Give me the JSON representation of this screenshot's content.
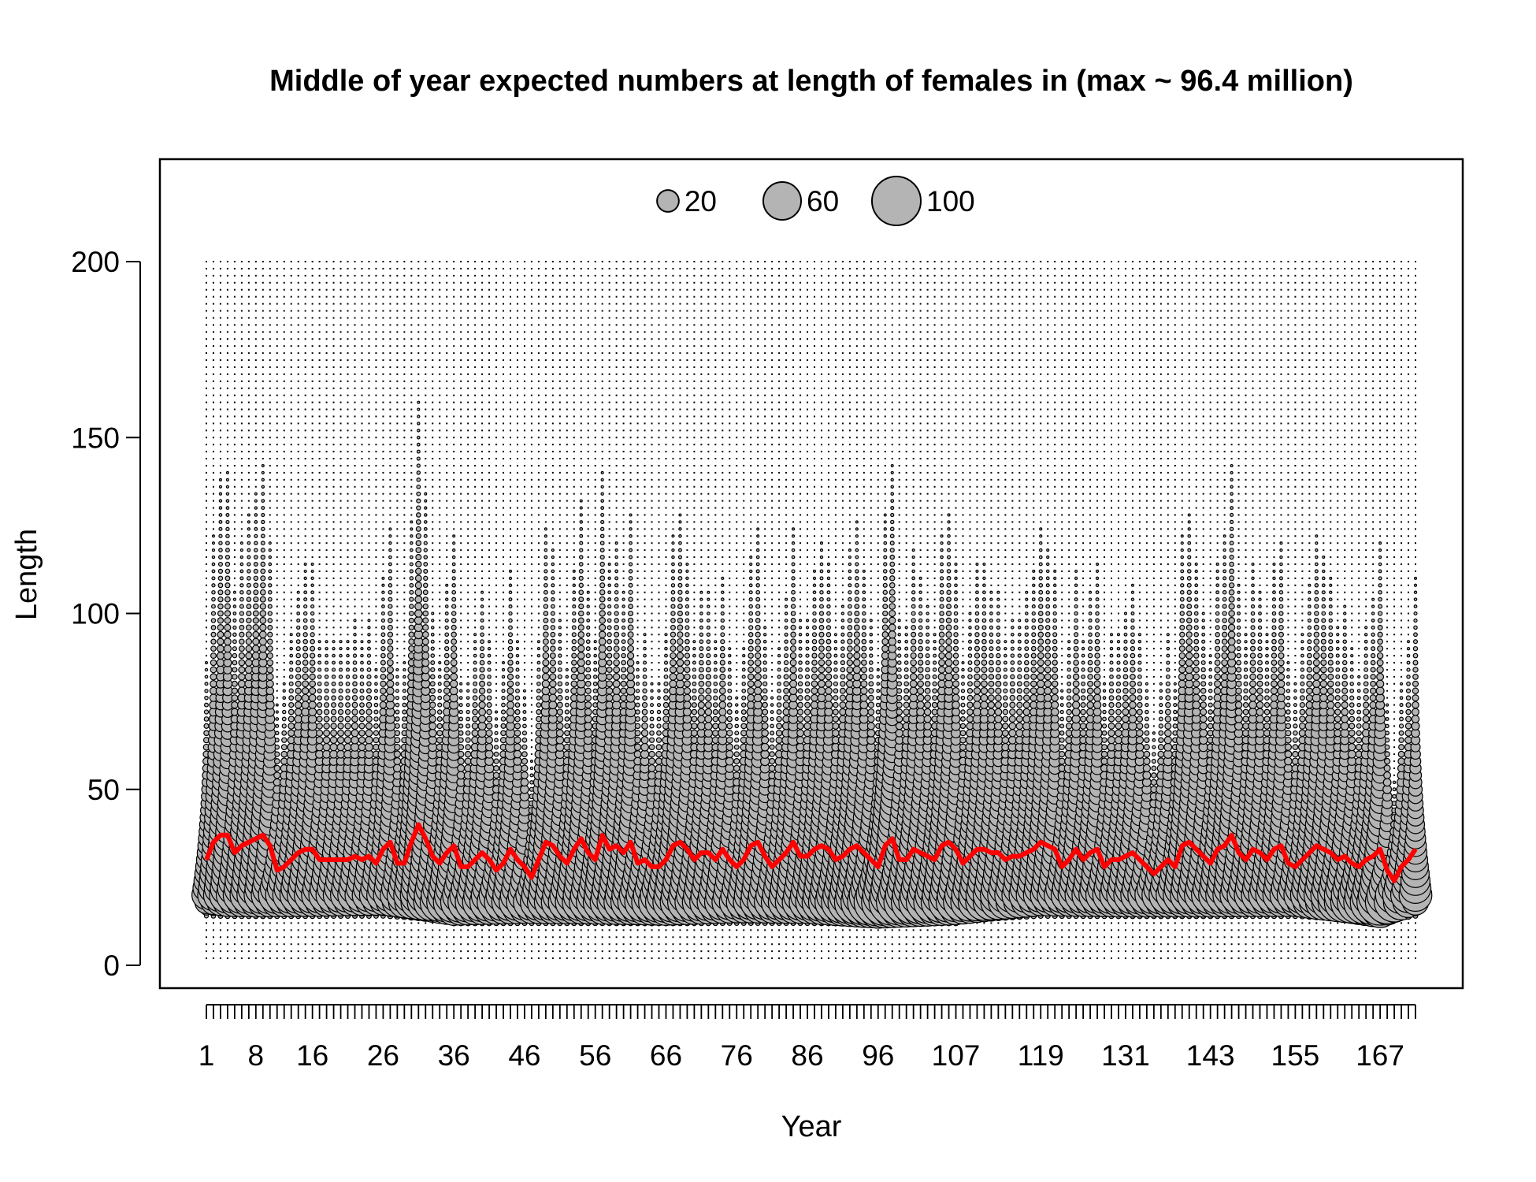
{
  "chart_data": {
    "type": "bubble",
    "title": "Middle of year expected numbers at length of females in (max ~ 96.4 million)",
    "xlabel": "Year",
    "ylabel": "Length",
    "x_range": [
      1,
      172
    ],
    "ylim": [
      0,
      210
    ],
    "y_ticks": [
      0,
      50,
      100,
      150,
      200
    ],
    "x_tick_labels": [
      1,
      8,
      16,
      26,
      36,
      46,
      56,
      66,
      76,
      86,
      96,
      107,
      119,
      131,
      143,
      155,
      167
    ],
    "length_bins": {
      "min": 2,
      "max": 200,
      "step": 2
    },
    "legend": {
      "placement": "top",
      "sizes": [
        20,
        60,
        100
      ],
      "labels": [
        "20",
        "60",
        "100"
      ]
    },
    "max_value_millions": 96.4,
    "bubble_fill": "#b4b4b4",
    "line_color": "#ff0000",
    "mean_length_series": {
      "name": "",
      "x": [
        1,
        2,
        3,
        4,
        5,
        6,
        7,
        8,
        9,
        10,
        11,
        12,
        13,
        14,
        15,
        16,
        17,
        18,
        19,
        20,
        21,
        22,
        23,
        24,
        25,
        26,
        27,
        28,
        29,
        30,
        31,
        32,
        33,
        34,
        35,
        36,
        37,
        38,
        39,
        40,
        41,
        42,
        43,
        44,
        45,
        46,
        47,
        48,
        49,
        50,
        51,
        52,
        53,
        54,
        55,
        56,
        57,
        58,
        59,
        60,
        61,
        62,
        63,
        64,
        65,
        66,
        67,
        68,
        69,
        70,
        71,
        72,
        73,
        74,
        75,
        76,
        77,
        78,
        79,
        80,
        81,
        82,
        83,
        84,
        85,
        86,
        87,
        88,
        89,
        90,
        91,
        92,
        93,
        94,
        95,
        96,
        97,
        98,
        99,
        100,
        101,
        102,
        103,
        104,
        105,
        106,
        107,
        108,
        109,
        110,
        111,
        112,
        113,
        114,
        115,
        116,
        117,
        118,
        119,
        120,
        121,
        122,
        123,
        124,
        125,
        126,
        127,
        128,
        129,
        130,
        131,
        132,
        133,
        134,
        135,
        136,
        137,
        138,
        139,
        140,
        141,
        142,
        143,
        144,
        145,
        146,
        147,
        148,
        149,
        150,
        151,
        152,
        153,
        154,
        155,
        156,
        157,
        158,
        159,
        160,
        161,
        162,
        163,
        164,
        165,
        166,
        167,
        168,
        169,
        170,
        171,
        172
      ],
      "y": [
        30,
        35,
        37,
        37,
        32,
        34,
        35,
        36,
        37,
        34,
        27,
        28,
        30,
        32,
        33,
        33,
        30,
        30,
        30,
        30,
        30,
        31,
        30,
        31,
        29,
        33,
        35,
        29,
        29,
        35,
        40,
        36,
        31,
        29,
        32,
        34,
        28,
        28,
        30,
        32,
        30,
        27,
        29,
        33,
        30,
        28,
        25,
        30,
        35,
        34,
        31,
        29,
        33,
        36,
        32,
        30,
        37,
        33,
        34,
        32,
        35,
        29,
        30,
        28,
        28,
        30,
        34,
        35,
        33,
        30,
        32,
        32,
        30,
        33,
        30,
        28,
        30,
        34,
        35,
        31,
        28,
        30,
        32,
        35,
        31,
        31,
        33,
        34,
        33,
        30,
        31,
        33,
        34,
        32,
        30,
        28,
        34,
        36,
        30,
        30,
        33,
        32,
        31,
        30,
        34,
        35,
        33,
        29,
        31,
        33,
        33,
        32,
        32,
        30,
        31,
        31,
        32,
        33,
        35,
        34,
        33,
        28,
        30,
        33,
        30,
        32,
        33,
        28,
        30,
        30,
        31,
        32,
        30,
        28,
        26,
        28,
        30,
        28,
        34,
        35,
        33,
        31,
        29,
        33,
        34,
        37,
        32,
        30,
        33,
        32,
        30,
        33,
        34,
        29,
        28,
        30,
        32,
        34,
        33,
        32,
        30,
        31,
        29,
        28,
        30,
        31,
        33,
        27,
        24,
        28,
        30,
        33
      ]
    },
    "peak_bubble_by_year": {
      "x": [
        1,
        4,
        8,
        16,
        26,
        36,
        46,
        56,
        66,
        76,
        86,
        96,
        107,
        119,
        131,
        143,
        155,
        167,
        172
      ],
      "y": [
        20,
        20,
        20,
        20,
        20,
        18,
        18,
        18,
        18,
        18,
        18,
        18,
        18,
        20,
        20,
        20,
        20,
        18,
        20
      ],
      "size": [
        35,
        55,
        60,
        55,
        45,
        70,
        55,
        60,
        70,
        50,
        55,
        96.4,
        65,
        50,
        60,
        60,
        55,
        90,
        45
      ]
    }
  }
}
